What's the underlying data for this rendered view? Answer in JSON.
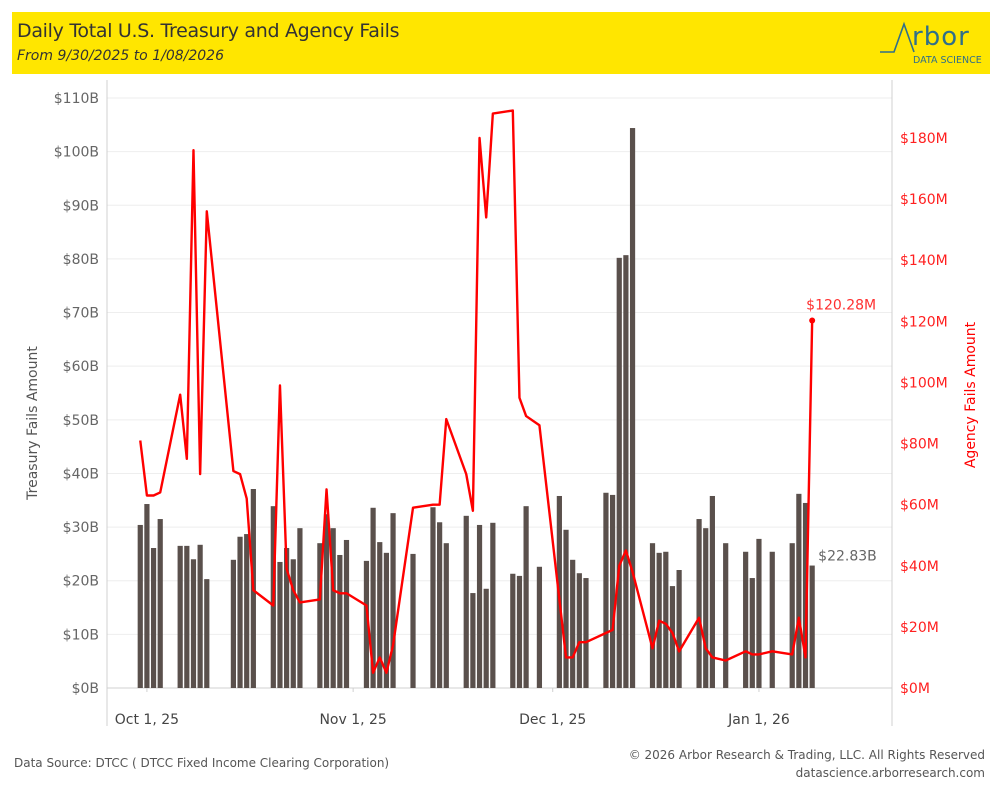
{
  "header": {
    "title": "Daily Total U.S. Treasury and Agency Fails",
    "subtitle": "From 9/30/2025 to 1/08/2026",
    "logo_word": "rbor",
    "logo_sub": "DATA SCIENCE",
    "brand_color": "#ffe600"
  },
  "footer": {
    "source": "Data Source: DTCC ( DTCC Fixed Income Clearing Corporation)",
    "copyright": "© 2026 Arbor Research & Trading, LLC. All Rights Reserved",
    "website": "datascience.arborresearch.com"
  },
  "chart_data": {
    "type": "bar",
    "title": "Daily Total U.S. Treasury and Agency Fails",
    "subtitle": "From 9/30/2025 to 1/08/2026",
    "xlabel": "",
    "x_ticks": [
      {
        "label": "Oct 1, 25",
        "day": 1
      },
      {
        "label": "Nov 1, 25",
        "day": 32
      },
      {
        "label": "Dec 1, 25",
        "day": 62
      },
      {
        "label": "Jan 1, 26",
        "day": 93
      }
    ],
    "x_range_days": [
      -5,
      113
    ],
    "x_unit_note": "day = days since Sep 30, 2025 (Oct 1 = 1)",
    "y_left": {
      "label": "Treasury Fails Amount",
      "ticks": [
        "$0B",
        "$10B",
        "$20B",
        "$30B",
        "$40B",
        "$50B",
        "$60B",
        "$70B",
        "$80B",
        "$90B",
        "$100B",
        "$110B"
      ],
      "range": [
        0,
        110
      ],
      "unit": "B"
    },
    "y_right": {
      "label": "Agency Fails Amount",
      "ticks": [
        "$0M",
        "$20M",
        "$40M",
        "$60M",
        "$80M",
        "$100M",
        "$120M",
        "$140M",
        "$160M",
        "$180M"
      ],
      "range": [
        0,
        180
      ],
      "unit": "M"
    },
    "grid": true,
    "colors": {
      "bars": "#5a504c",
      "line": "#ff0000",
      "axis_text": "#666666"
    },
    "series": [
      {
        "name": "Treasury Fails Amount",
        "type": "bar",
        "axis": "left",
        "days": [
          0,
          1,
          2,
          3,
          6,
          7,
          8,
          9,
          10,
          14,
          15,
          16,
          17,
          20,
          21,
          22,
          23,
          24,
          27,
          28,
          29,
          30,
          31,
          34,
          35,
          36,
          37,
          38,
          41,
          44,
          45,
          46,
          49,
          50,
          51,
          52,
          53,
          56,
          57,
          58,
          60,
          63,
          64,
          65,
          66,
          67,
          70,
          71,
          72,
          73,
          74,
          77,
          78,
          79,
          80,
          81,
          84,
          85,
          86,
          88,
          91,
          92,
          93,
          95,
          98,
          99,
          100,
          101
        ],
        "values": [
          30.4,
          34.3,
          26.1,
          31.5,
          26.5,
          26.5,
          24.0,
          26.7,
          20.3,
          23.9,
          28.2,
          28.7,
          37.1,
          33.9,
          23.5,
          26.1,
          24.0,
          29.8,
          27.0,
          32.4,
          29.8,
          24.8,
          27.6,
          23.7,
          33.6,
          27.2,
          25.2,
          32.6,
          25.0,
          33.7,
          30.9,
          27.0,
          32.1,
          17.7,
          30.4,
          18.5,
          30.8,
          21.3,
          20.9,
          33.9,
          22.6,
          35.8,
          29.5,
          23.9,
          21.4,
          20.5,
          36.4,
          36.0,
          80.2,
          80.7,
          104.4,
          27.0,
          25.2,
          25.4,
          19.0,
          22.0,
          31.5,
          29.8,
          35.8,
          27.0,
          25.4,
          20.5,
          27.8,
          25.4,
          27.0,
          36.2,
          34.5,
          22.83
        ],
        "last_label": "$22.83B"
      },
      {
        "name": "Agency Fails Amount",
        "type": "line",
        "axis": "right",
        "days": [
          0,
          1,
          2,
          3,
          6,
          7,
          8,
          9,
          10,
          14,
          15,
          16,
          17,
          20,
          21,
          22,
          23,
          24,
          27,
          28,
          29,
          30,
          31,
          34,
          35,
          36,
          37,
          38,
          41,
          44,
          45,
          46,
          49,
          50,
          51,
          52,
          53,
          56,
          57,
          58,
          60,
          63,
          64,
          65,
          66,
          67,
          70,
          71,
          72,
          73,
          74,
          77,
          78,
          79,
          80,
          81,
          84,
          85,
          86,
          88,
          91,
          92,
          93,
          95,
          98,
          99,
          100,
          101
        ],
        "values": [
          81,
          63,
          63,
          64,
          96,
          75,
          176,
          70,
          156,
          71,
          70,
          62,
          32,
          27,
          99,
          39,
          32,
          28,
          29,
          65,
          32,
          31,
          31,
          27,
          5,
          10,
          5,
          14,
          59,
          60,
          60,
          88,
          70,
          58,
          180,
          154,
          188,
          189,
          95,
          89,
          86,
          29,
          10,
          10,
          15,
          15,
          18,
          19,
          40,
          45,
          38,
          13,
          22,
          21,
          18,
          12,
          23,
          13,
          10,
          9,
          12,
          11,
          11,
          12,
          11,
          23,
          10,
          120.28
        ],
        "last_label": "$120.28M"
      }
    ]
  }
}
